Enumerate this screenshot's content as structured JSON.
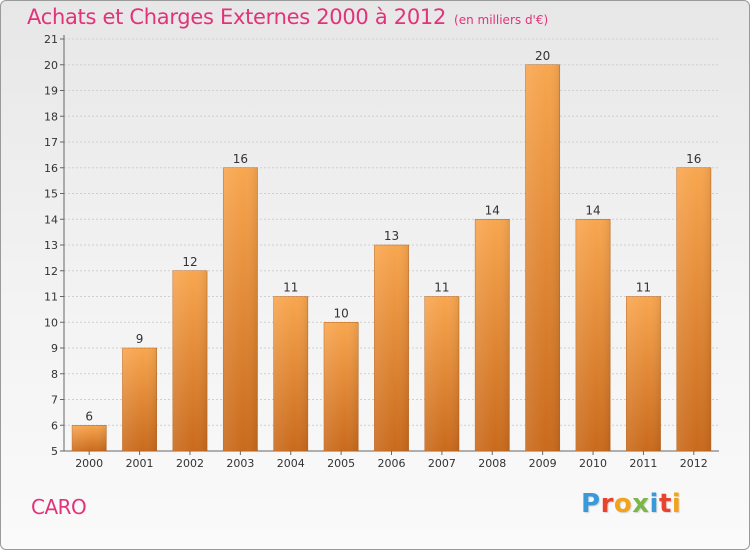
{
  "title": "Achats et Charges Externes 2000 à 2012",
  "unit_note": "(en milliers d'€)",
  "city": "CARO",
  "logo": {
    "text": "Proxiti",
    "letters": [
      {
        "ch": "P",
        "color": "#3a9ad9"
      },
      {
        "ch": "r",
        "color": "#e8432f"
      },
      {
        "ch": "o",
        "color": "#f2a31b"
      },
      {
        "ch": "x",
        "color": "#7ab648"
      },
      {
        "ch": "i",
        "color": "#3a9ad9"
      },
      {
        "ch": "t",
        "color": "#e8432f"
      },
      {
        "ch": "i",
        "color": "#f2a31b"
      }
    ]
  },
  "colors": {
    "bar_top": "#f8a64f",
    "bar_bottom": "#c96a1c",
    "title": "#e2337a",
    "grid": "#cfcfcf",
    "axis": "#666666"
  },
  "chart_data": {
    "type": "bar",
    "title": "Achats et Charges Externes 2000 à 2012",
    "subtitle": "(en milliers d'€)",
    "xlabel": "",
    "ylabel": "",
    "categories": [
      "2000",
      "2001",
      "2002",
      "2003",
      "2004",
      "2005",
      "2006",
      "2007",
      "2008",
      "2009",
      "2010",
      "2011",
      "2012"
    ],
    "values": [
      6,
      9,
      12,
      16,
      11,
      10,
      13,
      11,
      14,
      20,
      14,
      11,
      16
    ],
    "ylim": [
      5,
      21
    ],
    "yticks": [
      5,
      6,
      7,
      8,
      9,
      10,
      11,
      12,
      13,
      14,
      15,
      16,
      17,
      18,
      19,
      20,
      21
    ],
    "grid": true,
    "data_labels": true
  }
}
